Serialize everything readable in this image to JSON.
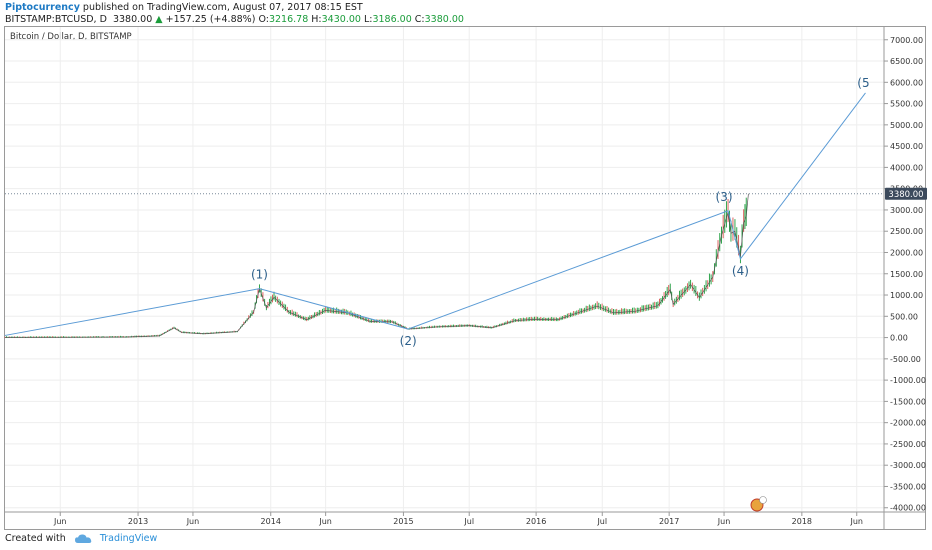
{
  "header": {
    "author": "Piptocurrency",
    "published": "published on TradingView.com, August 07, 2017 08:15 EST",
    "symbol": "BITSTAMP:BTCUSD, D",
    "last": "3380.00",
    "arrow": "▲",
    "change": "+157.25 (+4.88%)",
    "o_label": "O:",
    "o": "3216.78",
    "h_label": "H:",
    "h": "3430.00",
    "l_label": "L:",
    "l": "3186.00",
    "c_label": "C:",
    "c": "3380.00"
  },
  "pane_title": "Bitcoin / Dollar, D, BITSTAMP",
  "price_tag": "3380.00",
  "footer": {
    "created_with": "Created with",
    "brand": "TradingView"
  },
  "colors": {
    "wave_line": "#5b9bd5",
    "label": "#2c5f8a",
    "tag_bg": "#3c4a5c",
    "up": "#1a9c3a",
    "down": "#d9534f"
  },
  "chart_data": {
    "type": "line",
    "title": "",
    "y_ticks": [
      7000,
      6500,
      6000,
      5500,
      5000,
      4500,
      4000,
      3500,
      3000,
      2500,
      2000,
      1500,
      1000,
      500,
      0,
      -500,
      -1000,
      -1500,
      -2000,
      -2500,
      -3000,
      -3500,
      -4000
    ],
    "y_tick_labels": [
      "7000.00",
      "6500.00",
      "6000.00",
      "5500.00",
      "5000.00",
      "4500.00",
      "4000.00",
      "3500.00",
      "3000.00",
      "2500.00",
      "2000.00",
      "1500.00",
      "1000.00",
      "500.00",
      "0.00",
      "-500.00",
      "-1000.00",
      "-1500.00",
      "-2000.00",
      "-2500.00",
      "-3000.00",
      "-3500.00",
      "-4000.00"
    ],
    "ylim": [
      -4100,
      7300
    ],
    "x_ticks": [
      "2012-06",
      "2013-01",
      "2013-06",
      "2014-01",
      "2014-06",
      "2015-01",
      "2015-07",
      "2016-01",
      "2016-07",
      "2017-01",
      "2017-06",
      "2018-01",
      "2018-06"
    ],
    "x_tick_labels": [
      "Jun",
      "2013",
      "Jun",
      "2014",
      "Jun",
      "2015",
      "Jul",
      "2016",
      "Jul",
      "2017",
      "Jun",
      "2018",
      "Jun"
    ],
    "xlim": [
      "2012-01-01",
      "2018-08-15"
    ],
    "price_series": [
      {
        "date": "2012-01-01",
        "value": 5
      },
      {
        "date": "2012-06-01",
        "value": 6
      },
      {
        "date": "2012-12-01",
        "value": 13
      },
      {
        "date": "2013-03-01",
        "value": 40
      },
      {
        "date": "2013-04-10",
        "value": 230
      },
      {
        "date": "2013-05-01",
        "value": 120
      },
      {
        "date": "2013-07-01",
        "value": 90
      },
      {
        "date": "2013-10-01",
        "value": 140
      },
      {
        "date": "2013-11-15",
        "value": 600
      },
      {
        "date": "2013-12-01",
        "value": 1150
      },
      {
        "date": "2013-12-20",
        "value": 700
      },
      {
        "date": "2014-01-10",
        "value": 950
      },
      {
        "date": "2014-02-20",
        "value": 600
      },
      {
        "date": "2014-04-10",
        "value": 420
      },
      {
        "date": "2014-06-01",
        "value": 640
      },
      {
        "date": "2014-08-01",
        "value": 580
      },
      {
        "date": "2014-10-01",
        "value": 380
      },
      {
        "date": "2014-12-01",
        "value": 370
      },
      {
        "date": "2015-01-14",
        "value": 200
      },
      {
        "date": "2015-04-01",
        "value": 250
      },
      {
        "date": "2015-07-01",
        "value": 280
      },
      {
        "date": "2015-09-01",
        "value": 230
      },
      {
        "date": "2015-11-05",
        "value": 400
      },
      {
        "date": "2016-01-01",
        "value": 430
      },
      {
        "date": "2016-03-01",
        "value": 420
      },
      {
        "date": "2016-06-17",
        "value": 740
      },
      {
        "date": "2016-08-01",
        "value": 580
      },
      {
        "date": "2016-10-01",
        "value": 620
      },
      {
        "date": "2016-12-01",
        "value": 750
      },
      {
        "date": "2017-01-04",
        "value": 1130
      },
      {
        "date": "2017-01-12",
        "value": 780
      },
      {
        "date": "2017-03-01",
        "value": 1250
      },
      {
        "date": "2017-03-25",
        "value": 940
      },
      {
        "date": "2017-05-01",
        "value": 1420
      },
      {
        "date": "2017-05-25",
        "value": 2400
      },
      {
        "date": "2017-06-12",
        "value": 2950
      },
      {
        "date": "2017-06-20",
        "value": 2450
      },
      {
        "date": "2017-07-01",
        "value": 2500
      },
      {
        "date": "2017-07-16",
        "value": 1900
      },
      {
        "date": "2017-07-25",
        "value": 2700
      },
      {
        "date": "2017-08-01",
        "value": 2850
      },
      {
        "date": "2017-08-07",
        "value": 3380
      }
    ],
    "wave_points": [
      {
        "date": "2012-01-01",
        "value": 50,
        "label": ""
      },
      {
        "date": "2013-12-01",
        "value": 1150,
        "label": "(1)"
      },
      {
        "date": "2015-01-14",
        "value": 200,
        "label": "(2)"
      },
      {
        "date": "2017-06-12",
        "value": 2980,
        "label": "(3)"
      },
      {
        "date": "2017-07-16",
        "value": 1850,
        "label": "(4)"
      },
      {
        "date": "2018-06-25",
        "value": 5750,
        "label": "(5"
      }
    ],
    "last_price": 3380
  }
}
